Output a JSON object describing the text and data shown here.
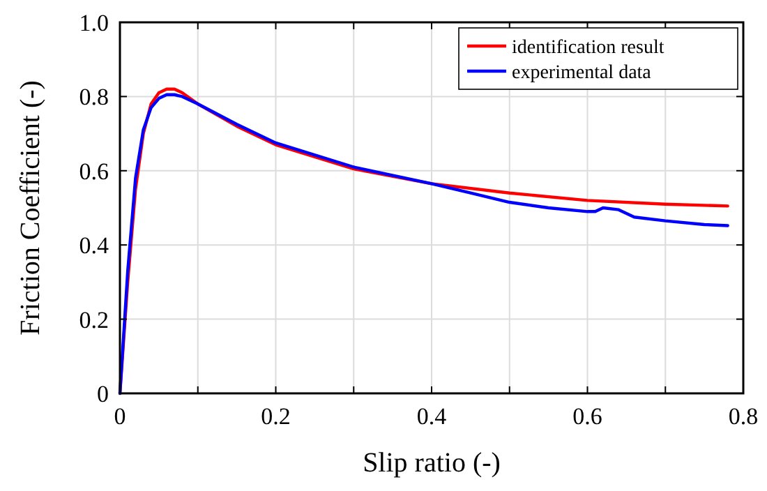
{
  "chart_data": {
    "type": "line",
    "xlabel": "Slip ratio (-)",
    "ylabel": "Friction Coefficient (-)",
    "xlim": [
      0,
      0.8
    ],
    "ylim": [
      0,
      1
    ],
    "xticks": [
      0,
      {
        "value": 0.1,
        "label": null
      },
      0.2,
      {
        "value": 0.3,
        "label": null
      },
      0.4,
      {
        "value": 0.5,
        "label": null
      },
      0.6,
      {
        "value": 0.7,
        "label": null
      },
      0.8
    ],
    "yticks": [
      0,
      0.2,
      0.4,
      0.6,
      0.8,
      {
        "value": 1,
        "label": "1.0"
      }
    ],
    "grid": true,
    "legend": "top right",
    "line_style": "solid",
    "marker": "none",
    "series": [
      {
        "name": "identification result",
        "color": "#ff0000",
        "x": [
          0,
          0.01,
          0.02,
          0.03,
          0.04,
          0.05,
          0.06,
          0.07,
          0.08,
          0.1,
          0.15,
          0.2,
          0.3,
          0.4,
          0.5,
          0.6,
          0.7,
          0.78
        ],
        "values": [
          0,
          0.3,
          0.55,
          0.7,
          0.78,
          0.81,
          0.82,
          0.82,
          0.81,
          0.78,
          0.72,
          0.67,
          0.605,
          0.565,
          0.54,
          0.52,
          0.51,
          0.505
        ]
      },
      {
        "name": "experimental data",
        "color": "#0000ff",
        "x": [
          0,
          0.01,
          0.02,
          0.03,
          0.04,
          0.05,
          0.06,
          0.07,
          0.08,
          0.1,
          0.15,
          0.2,
          0.3,
          0.4,
          0.45,
          0.5,
          0.55,
          0.6,
          0.61,
          0.62,
          0.64,
          0.66,
          0.7,
          0.75,
          0.78
        ],
        "values": [
          0,
          0.33,
          0.58,
          0.71,
          0.77,
          0.795,
          0.805,
          0.805,
          0.8,
          0.78,
          0.725,
          0.675,
          0.61,
          0.565,
          0.54,
          0.515,
          0.5,
          0.49,
          0.49,
          0.5,
          0.495,
          0.475,
          0.465,
          0.455,
          0.452
        ]
      }
    ]
  }
}
